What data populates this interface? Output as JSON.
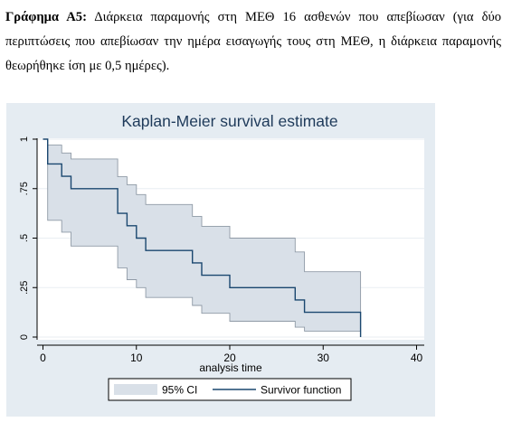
{
  "caption": {
    "label": "Γράφημα Α5:",
    "text": " Διάρκεια παραμονής στη ΜΕΘ 16 ασθενών που απεβίωσαν (για δύο περιπτώσεις που απεβίωσαν την ημέρα εισαγωγής τους στη ΜΕΘ, η διάρκεια παραμονής θεωρήθηκε ίση με 0,5 ημέρες)."
  },
  "colors": {
    "outer_bg": "#e5ecf2",
    "plot_bg": "#ffffff",
    "ci_fill": "#d9e0e8",
    "ci_stroke": "#8f9aa6",
    "survivor_line": "#1a476f",
    "grid": "#e9eef2"
  },
  "chart_data": {
    "type": "line",
    "title": "Kaplan-Meier survival estimate",
    "xlabel": "analysis time",
    "ylabel": "",
    "xlim": [
      0,
      40
    ],
    "ylim": [
      0,
      1
    ],
    "xticks": [
      0,
      10,
      20,
      30,
      40
    ],
    "xtick_labels": [
      "0",
      "10",
      "20",
      "30",
      "40"
    ],
    "yticks": [
      0,
      0.25,
      0.5,
      0.75,
      1
    ],
    "ytick_labels": [
      "0",
      ".25",
      ".5",
      ".75",
      "1"
    ],
    "grid": true,
    "legend_position": "bottom",
    "legend": [
      "95% CI",
      "Survivor function"
    ],
    "series": [
      {
        "name": "Survivor function",
        "style": "step",
        "x": [
          0,
          0.5,
          2,
          3,
          8,
          9,
          10,
          11,
          16,
          17,
          20,
          27,
          28,
          34
        ],
        "y": [
          1,
          0.875,
          0.8125,
          0.75,
          0.625,
          0.5625,
          0.5,
          0.4375,
          0.375,
          0.3125,
          0.25,
          0.1875,
          0.125,
          0
        ]
      },
      {
        "name": "95% CI",
        "style": "band",
        "x": [
          0,
          0.5,
          2,
          3,
          8,
          9,
          10,
          11,
          16,
          17,
          20,
          27,
          28,
          34
        ],
        "upper": [
          1,
          0.97,
          0.93,
          0.9,
          0.81,
          0.77,
          0.72,
          0.67,
          0.61,
          0.56,
          0.5,
          0.43,
          0.33,
          0.33
        ],
        "lower": [
          1,
          0.59,
          0.53,
          0.46,
          0.35,
          0.29,
          0.25,
          0.2,
          0.16,
          0.12,
          0.08,
          0.05,
          0.03,
          0
        ]
      }
    ]
  }
}
